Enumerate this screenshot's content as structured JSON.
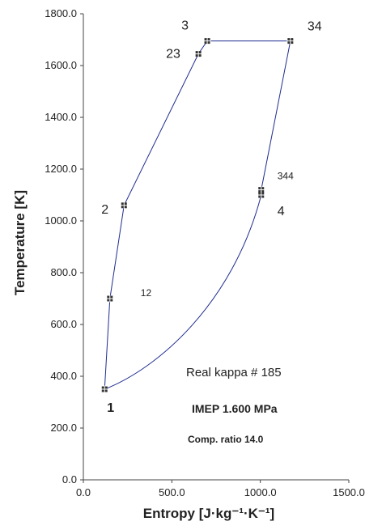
{
  "chart_data": {
    "type": "line",
    "title": "",
    "xlabel": "Entropy  [J·kg⁻¹·K⁻¹]",
    "ylabel": "Temperature [K]",
    "xlim": [
      0,
      1500
    ],
    "ylim": [
      0,
      1800
    ],
    "x_ticks": [
      "0.0",
      "500.0",
      "1000.0",
      "1500.0"
    ],
    "y_ticks": [
      "0.0",
      "200.0",
      "400.0",
      "600.0",
      "800.0",
      "1000.0",
      "1200.0",
      "1400.0",
      "1600.0",
      "1800.0"
    ],
    "grid": false,
    "line_color": "#1f2d8f",
    "marker_color": "#333333",
    "points": [
      {
        "label": "1",
        "x": 120,
        "y": 350
      },
      {
        "label": "12",
        "x": 150,
        "y": 700
      },
      {
        "label": "2",
        "x": 230,
        "y": 1060
      },
      {
        "label": "23",
        "x": 650,
        "y": 1645
      },
      {
        "label": "3",
        "x": 700,
        "y": 1695
      },
      {
        "label": "34",
        "x": 1170,
        "y": 1695
      },
      {
        "label": "344",
        "x": 1005,
        "y": 1120
      },
      {
        "label": "4",
        "x": 1005,
        "y": 1100
      }
    ],
    "cycle_path": [
      [
        120,
        350
      ],
      [
        150,
        700
      ],
      [
        230,
        1060
      ],
      [
        650,
        1645
      ],
      [
        700,
        1695
      ],
      [
        1170,
        1695
      ],
      [
        1005,
        1120
      ],
      [
        1005,
        1100
      ],
      [
        120,
        350
      ]
    ],
    "annotations": [
      "Real kappa # 185",
      "IMEP 1.600 MPa",
      "Comp. ratio 14.0"
    ]
  }
}
